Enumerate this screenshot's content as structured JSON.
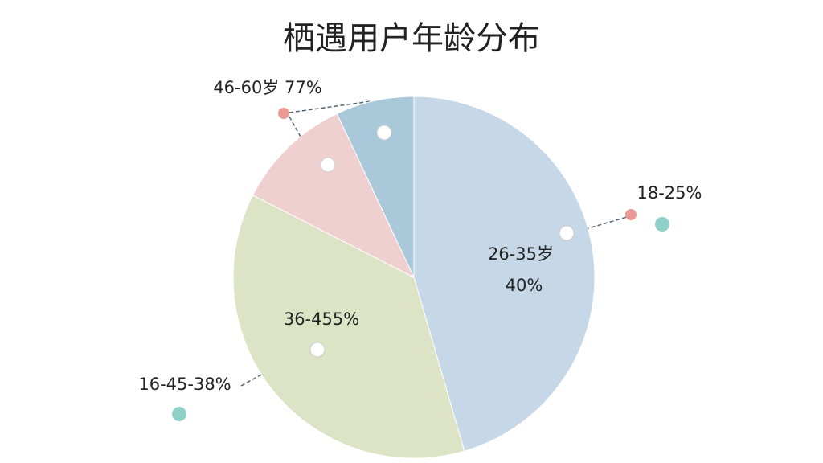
{
  "chart_data": {
    "type": "pie",
    "title": "栖遇用户年龄分布",
    "values": [
      45.5,
      37,
      10.5,
      7
    ],
    "colors": [
      "#c6d7e7",
      "#dde3c5",
      "#efd0d0",
      "#a9c8da"
    ],
    "annotations": [
      "46-60岁 77%",
      "18-25%",
      "26-35岁",
      "40%",
      "36-455%",
      "16-45-38%"
    ]
  }
}
